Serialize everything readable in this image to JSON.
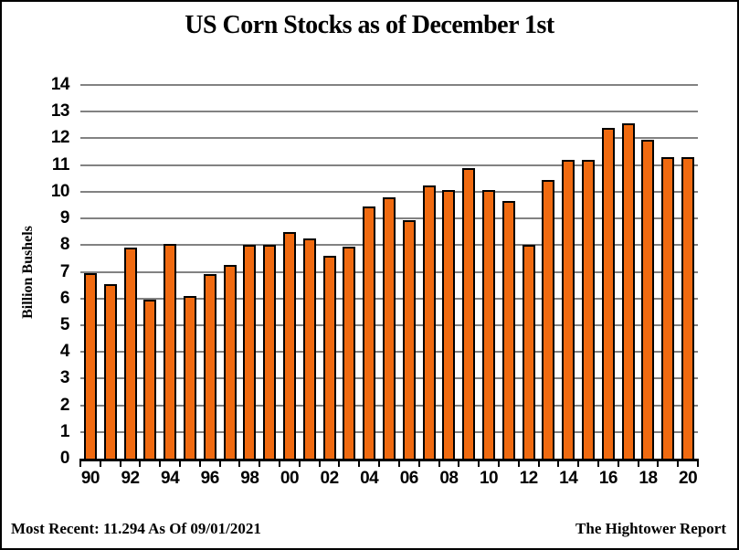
{
  "window": {
    "background": "#FFFFFF",
    "border_color": "#000000"
  },
  "chart_data": {
    "type": "bar",
    "title": "US Corn Stocks as of December 1st",
    "xlabel": "",
    "ylabel": "Billion Bushels",
    "ylim": [
      0,
      14
    ],
    "ytick_interval": 1,
    "ytick_labels": [
      "0",
      "1",
      "2",
      "3",
      "4",
      "5",
      "6",
      "7",
      "8",
      "9",
      "10",
      "11",
      "12",
      "13",
      "14"
    ],
    "grid": "horizontal",
    "legend": "none",
    "categories": [
      "90",
      "91",
      "92",
      "93",
      "94",
      "95",
      "96",
      "97",
      "98",
      "99",
      "00",
      "01",
      "02",
      "03",
      "04",
      "05",
      "06",
      "07",
      "08",
      "09",
      "10",
      "11",
      "12",
      "13",
      "14",
      "15",
      "16",
      "17",
      "18",
      "19",
      "20"
    ],
    "x_labels_shown": [
      "90",
      "92",
      "94",
      "96",
      "98",
      "00",
      "02",
      "04",
      "06",
      "08",
      "10",
      "12",
      "14",
      "16",
      "18",
      "20"
    ],
    "values": [
      6.95,
      6.55,
      7.9,
      5.95,
      8.05,
      6.1,
      6.9,
      7.25,
      8.0,
      8.0,
      8.5,
      8.25,
      7.6,
      7.95,
      9.45,
      9.8,
      8.95,
      10.25,
      10.05,
      10.9,
      10.05,
      9.65,
      8.0,
      10.45,
      11.2,
      11.2,
      12.4,
      12.55,
      11.95,
      11.3,
      11.294
    ],
    "colors": {
      "bar_fill": "#F06A10",
      "bar_border": "#000000",
      "gridline": "#828282",
      "axis": "#000000",
      "text": "#000000"
    }
  },
  "footer": {
    "most_recent": "Most Recent: 11.294 As Of 09/01/2021",
    "source": "The Hightower Report"
  }
}
